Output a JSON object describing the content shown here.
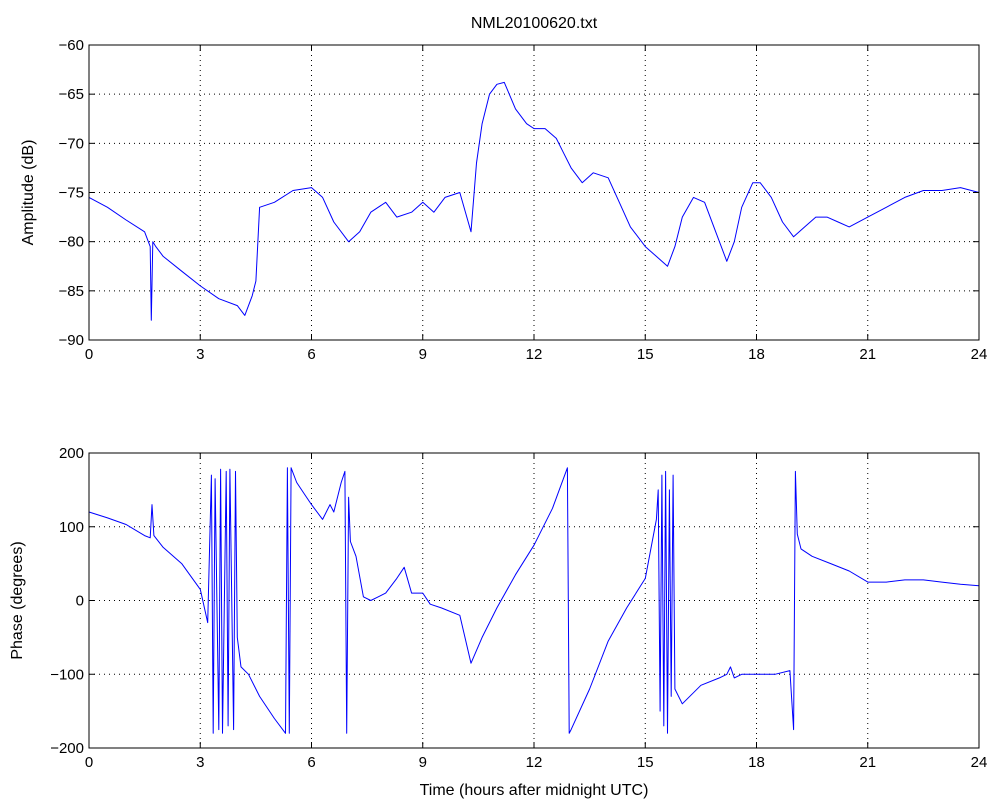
{
  "title": "NML20100620.txt",
  "colors": {
    "series": "#0000ff",
    "axes": "#000000",
    "background": "#ffffff"
  },
  "chart_data": [
    {
      "type": "line",
      "ylabel": "Amplitude (dB)",
      "xlabel": "",
      "xlim": [
        0,
        24
      ],
      "ylim": [
        -90,
        -60
      ],
      "xticks": [
        0,
        3,
        6,
        9,
        12,
        15,
        18,
        21,
        24
      ],
      "yticks": [
        -90,
        -85,
        -80,
        -75,
        -70,
        -65,
        -60
      ],
      "grid": true,
      "series": [
        {
          "x": [
            0,
            0.5,
            1.0,
            1.5,
            1.65,
            1.68,
            1.72,
            1.8,
            2.0,
            2.5,
            3.0,
            3.5,
            4.0,
            4.2,
            4.4,
            4.5,
            4.6,
            5.0,
            5.5,
            6.0,
            6.3,
            6.6,
            7.0,
            7.3,
            7.6,
            8.0,
            8.3,
            8.7,
            9.0,
            9.3,
            9.6,
            10.0,
            10.3,
            10.45,
            10.6,
            10.8,
            11.0,
            11.2,
            11.5,
            11.8,
            12.0,
            12.3,
            12.6,
            12.8,
            13.0,
            13.3,
            13.6,
            14.0,
            14.3,
            14.6,
            15.0,
            15.3,
            15.6,
            15.8,
            16.0,
            16.3,
            16.6,
            16.9,
            17.2,
            17.4,
            17.6,
            17.9,
            18.1,
            18.4,
            18.7,
            19.0,
            19.3,
            19.6,
            19.9,
            20.2,
            20.5,
            21.0,
            21.5,
            22.0,
            22.5,
            23.0,
            23.5,
            24.0
          ],
          "y": [
            -75.5,
            -76.5,
            -77.8,
            -79.0,
            -80.5,
            -88.0,
            -80.0,
            -80.5,
            -81.5,
            -83.0,
            -84.5,
            -85.8,
            -86.5,
            -87.5,
            -85.5,
            -84.0,
            -76.5,
            -76.0,
            -74.8,
            -74.5,
            -75.5,
            -78.0,
            -80.0,
            -79.0,
            -77.0,
            -76.0,
            -77.5,
            -77.0,
            -76.0,
            -77.0,
            -75.5,
            -75.0,
            -79.0,
            -72.0,
            -68.0,
            -65.0,
            -64.0,
            -63.8,
            -66.5,
            -68.0,
            -68.5,
            -68.5,
            -69.5,
            -71.0,
            -72.5,
            -74.0,
            -73.0,
            -73.5,
            -76.0,
            -78.5,
            -80.5,
            -81.5,
            -82.5,
            -80.5,
            -77.5,
            -75.5,
            -76.0,
            -79.0,
            -82.0,
            -80.0,
            -76.5,
            -74.0,
            -74.0,
            -75.5,
            -78.0,
            -79.5,
            -78.5,
            -77.5,
            -77.5,
            -78.0,
            -78.5,
            -77.5,
            -76.5,
            -75.5,
            -74.8,
            -74.8,
            -74.5,
            -75.0
          ]
        }
      ]
    },
    {
      "type": "line",
      "ylabel": "Phase (degrees)",
      "xlabel": "Time (hours after midnight UTC)",
      "xlim": [
        0,
        24
      ],
      "ylim": [
        -200,
        200
      ],
      "xticks": [
        0,
        3,
        6,
        9,
        12,
        15,
        18,
        21,
        24
      ],
      "yticks": [
        -200,
        -100,
        0,
        100,
        200
      ],
      "grid": true,
      "series": [
        {
          "x": [
            0,
            0.5,
            1.0,
            1.5,
            1.65,
            1.7,
            1.75,
            2.0,
            2.5,
            3.0,
            3.2,
            3.3,
            3.35,
            3.4,
            3.5,
            3.55,
            3.6,
            3.7,
            3.75,
            3.8,
            3.9,
            3.95,
            4.0,
            4.1,
            4.3,
            4.6,
            5.0,
            5.3,
            5.35,
            5.4,
            5.45,
            5.6,
            5.8,
            6.0,
            6.3,
            6.5,
            6.6,
            6.8,
            6.9,
            6.95,
            7.0,
            7.05,
            7.2,
            7.4,
            7.6,
            7.8,
            8.0,
            8.3,
            8.5,
            8.7,
            9.0,
            9.2,
            9.5,
            10.0,
            10.3,
            10.6,
            11.0,
            11.5,
            12.0,
            12.5,
            12.9,
            12.95,
            13.0,
            13.5,
            14.0,
            14.5,
            15.0,
            15.3,
            15.35,
            15.4,
            15.45,
            15.5,
            15.55,
            15.6,
            15.65,
            15.7,
            15.75,
            15.8,
            16.0,
            16.5,
            17.0,
            17.2,
            17.3,
            17.4,
            17.6,
            18.0,
            18.5,
            18.9,
            19.0,
            19.05,
            19.1,
            19.2,
            19.5,
            20.0,
            20.5,
            21.0,
            21.5,
            22.0,
            22.5,
            23.0,
            23.5,
            24.0
          ],
          "y": [
            120,
            112,
            103,
            88,
            85,
            130,
            88,
            72,
            50,
            15,
            -30,
            170,
            -180,
            165,
            -175,
            178,
            -180,
            175,
            -170,
            178,
            -175,
            175,
            -50,
            -90,
            -100,
            -130,
            -160,
            -180,
            180,
            -180,
            180,
            160,
            145,
            130,
            110,
            130,
            120,
            160,
            175,
            -180,
            140,
            80,
            60,
            5,
            0,
            5,
            10,
            30,
            45,
            10,
            10,
            -5,
            -10,
            -20,
            -85,
            -50,
            -10,
            35,
            75,
            125,
            180,
            -180,
            -175,
            -120,
            -55,
            -10,
            30,
            110,
            150,
            -150,
            170,
            -170,
            175,
            -180,
            150,
            -130,
            170,
            -120,
            -140,
            -115,
            -105,
            -100,
            -90,
            -105,
            -100,
            -100,
            -100,
            -95,
            -175,
            175,
            90,
            70,
            60,
            50,
            40,
            25,
            25,
            28,
            28,
            25,
            22,
            20
          ]
        }
      ]
    }
  ]
}
